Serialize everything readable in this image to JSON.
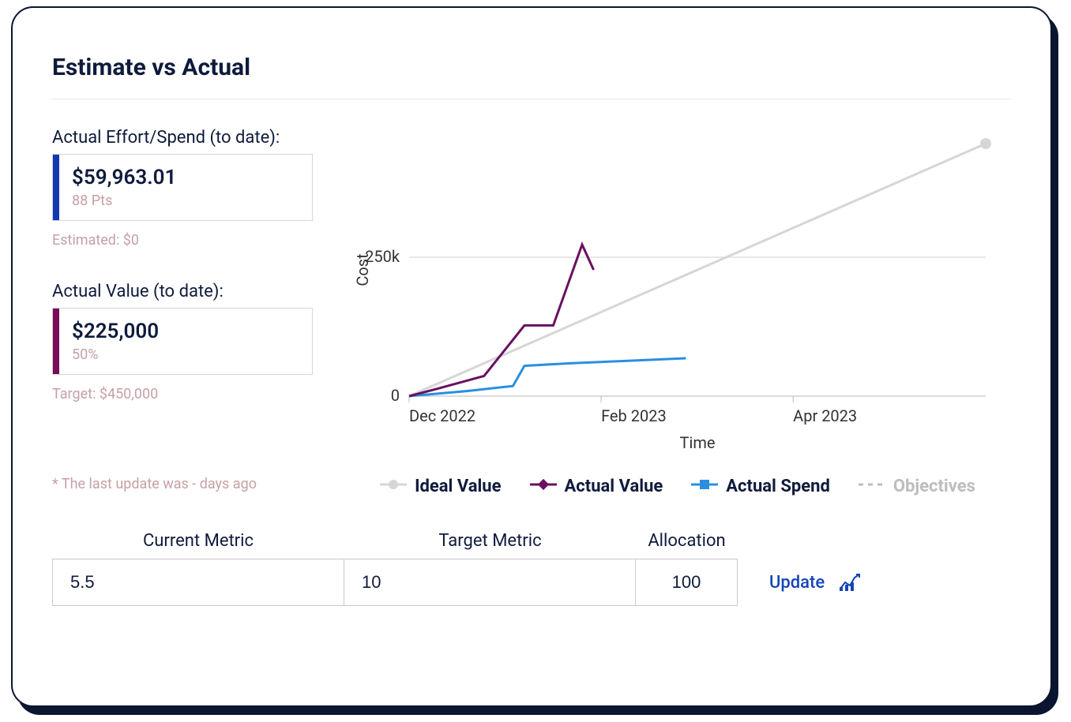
{
  "title": "Estimate vs Actual",
  "effort": {
    "label": "Actual Effort/Spend (to date):",
    "value": "$59,963.01",
    "sub": "88 Pts",
    "note": "Estimated: $0",
    "bar_color": "#1338b0"
  },
  "value_card": {
    "label": "Actual Value (to date):",
    "value": "$225,000",
    "sub": "50%",
    "note": "Target: $450,000",
    "bar_color": "#7a0a5a"
  },
  "footnote": "* The last update was - days ago",
  "chart": {
    "type": "line",
    "y_label": "Cost",
    "x_label": "Time",
    "x_ticks": [
      "Dec 2022",
      "Feb 2023",
      "Apr 2023"
    ],
    "x_tick_pos": [
      0,
      0.333,
      0.666
    ],
    "y_ticks": [
      "0",
      "250k"
    ],
    "y_tick_pos": [
      0,
      0.55
    ],
    "xlim": [
      0,
      1
    ],
    "ylim": [
      0,
      1
    ],
    "background_color": "#ffffff",
    "grid_color": "#cfcfcf",
    "axis_color": "#b9b9b9",
    "tick_fontsize": 20,
    "axis_label_fontsize": 20,
    "series": {
      "ideal": {
        "label": "Ideal Value",
        "color": "#d6d6d6",
        "width": 3,
        "marker": "circle",
        "marker_size": 7,
        "points": [
          [
            0.0,
            0.0
          ],
          [
            1.0,
            1.0
          ]
        ]
      },
      "actual_value": {
        "label": "Actual Value",
        "color": "#6a1060",
        "width": 3,
        "marker": "diamond",
        "marker_size": 7,
        "points": [
          [
            0.0,
            0.0
          ],
          [
            0.05,
            0.03
          ],
          [
            0.13,
            0.08
          ],
          [
            0.2,
            0.28
          ],
          [
            0.25,
            0.28
          ],
          [
            0.3,
            0.6
          ],
          [
            0.32,
            0.5
          ]
        ]
      },
      "actual_spend": {
        "label": "Actual Spend",
        "color": "#2a8fe0",
        "width": 3,
        "marker": "square",
        "marker_size": 7,
        "points": [
          [
            0.0,
            0.0
          ],
          [
            0.1,
            0.02
          ],
          [
            0.18,
            0.04
          ],
          [
            0.2,
            0.12
          ],
          [
            0.28,
            0.13
          ],
          [
            0.38,
            0.14
          ],
          [
            0.48,
            0.15
          ]
        ]
      },
      "objectives": {
        "label": "Objectives",
        "color": "#bdbdbd",
        "width": 3,
        "dash": "6,6",
        "marker": "none",
        "points": []
      }
    }
  },
  "inputs": {
    "current_metric": {
      "label": "Current Metric",
      "value": "5.5"
    },
    "target_metric": {
      "label": "Target Metric",
      "value": "10"
    },
    "allocation": {
      "label": "Allocation",
      "value": "100"
    }
  },
  "update_label": "Update"
}
